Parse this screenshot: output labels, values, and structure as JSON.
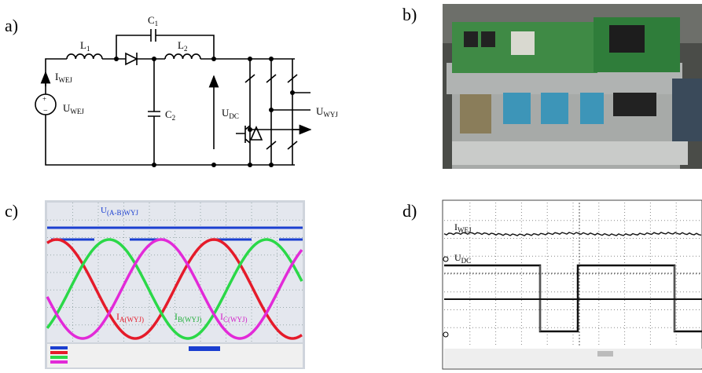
{
  "panel_a": {
    "label": "a)",
    "L1": [
      "L",
      "1"
    ],
    "C1": [
      "C",
      "1"
    ],
    "L2": [
      "L",
      "2"
    ],
    "C2": [
      "C",
      "2"
    ],
    "I_in": [
      "I",
      "WEJ"
    ],
    "U_in": [
      "U",
      "WEJ"
    ],
    "U_dc": [
      "U",
      "DC"
    ],
    "U_out": [
      "U",
      "WYJ"
    ]
  },
  "panel_b": {
    "label": "b)"
  },
  "panel_c": {
    "label": "c)",
    "U_ab": [
      "U",
      "(A-B)WYJ"
    ],
    "I_a": [
      "I",
      "A(WYJ)"
    ],
    "I_b": [
      "I",
      "B(WYJ)"
    ],
    "I_c": [
      "I",
      "C(WYJ)"
    ]
  },
  "panel_d": {
    "label": "d)",
    "I_in": [
      "I",
      "WEJ"
    ],
    "U_dc": [
      "U",
      "DC"
    ]
  }
}
